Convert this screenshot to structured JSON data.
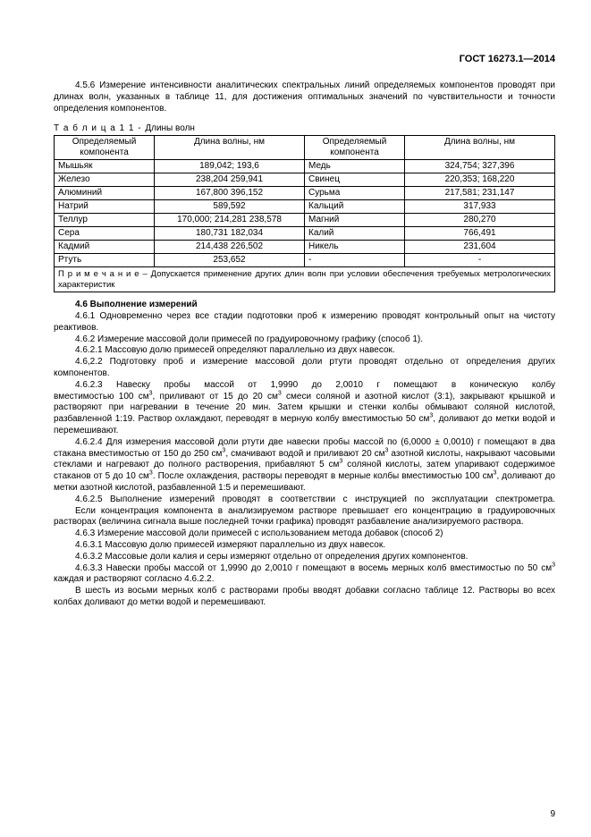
{
  "header": "ГОСТ 16273.1—2014",
  "para_intro": "4.5.6 Измерение интенсивности аналитических спектральных линий определяемых компонентов проводят при длинах волн, указанных в таблице 11, для достижения оптимальных значений по чувствительности и точности определения компонентов.",
  "table": {
    "caption_prefix": "Т а б л и ц а   1 1  - ",
    "caption_title": "Длины волн",
    "headers": [
      "Определяемый компонента",
      "Длина волны, нм",
      "Определяемый компонента",
      "Длина волны, нм"
    ],
    "rows": [
      [
        "Мышьяк",
        "189,042; 193,6",
        "Медь",
        "324,754; 327,396"
      ],
      [
        "Железо",
        "238,204 259,941",
        "Свинец",
        "220,353;  168,220"
      ],
      [
        "Алюминий",
        "167,800 396,152",
        "Сурьма",
        "217,581;  231,147"
      ],
      [
        "Натрий",
        "589,592",
        "Кальций",
        "317,933"
      ],
      [
        "Теллур",
        "170,000; 214,281 238,578",
        "Магний",
        "280,270"
      ],
      [
        "Сера",
        "180,731 182,034",
        "Калий",
        "766,491"
      ],
      [
        "Кадмий",
        "214,438 226,502",
        "Никель",
        "231,604"
      ],
      [
        "Ртуть",
        "253,652",
        "-",
        "-"
      ]
    ],
    "note": "П р и м е ч а н и е – Допускается применение других длин волн при условии обеспечения требуемых метрологических характеристик"
  },
  "section46": "4.6 Выполнение измерений",
  "p461": "4.6.1 Одновременно через все стадии подготовки проб к измерению проводят контрольный опыт на чистоту реактивов.",
  "p462": "4.6.2 Измерение массовой доли примесей по градуировочному графику (способ 1).",
  "p4621": "4.6.2.1 Массовую долю примесей определяют параллельно из двух навесок.",
  "p4622": "4.6,2.2 Подготовку проб и измерение массовой доли ртути проводят отдельно от определения других компонентов.",
  "p4623_l1": "4.6.2.3  Навеску  пробы  массой  от  1,9990  до  2,0010  г  помещают  в  коническую  колбу",
  "p4623_rest_a": "вместимостью 100 см",
  "p4623_rest_b": ", приливают от 15 до 20 см",
  "p4623_rest_c": " смеси соляной и азотной кислот (3:1), закрывают крышкой и растворяют при нагревании в течение 20 мин. Затем крышки и стенки колбы обмывают соляной кислотой, разбавленной 1:19. Раствор охлаждают, переводят в мерную колбу вместимостью 50 см",
  "p4623_rest_d": ", доливают до метки водой и перемешивают.",
  "p4624_a": "4.6.2.4 Для измерения массовой доли ртути две навески пробы массой по (6,0000 ± 0,0010) г помещают в два стакана вместимостью от 150 до 250 см",
  "p4624_b": ", смачивают водой и приливают 20 см",
  "p4624_c": " азотной кислоты, накрывают часовыми стеклами и нагревают до полного растворения, прибавляют 5 см",
  "p4624_d": " соляной кислоты, затем упаривают содержимое стаканов от 5 до 10 см",
  "p4624_e": ". После охлаждения, растворы переводят в мерные колбы вместимостью 100 см",
  "p4624_f": ", доливают до метки азотной кислотой, разбавленной 1:5 и перемешивают.",
  "p4625": "4.6.2.5 Выполнение измерений проводят в соответствии с инструкцией по эксплуатации спектрометра.",
  "p_conc": "Если концентрация компонента в анализируемом растворе превышает его концентрацию в градуировочных растворах (величина сигнала выше последней точки графика) проводят разбавление анализируемого раствора.",
  "p463": "4.6.3 Измерение массовой доли примесей с использованием метода добавок (способ 2)",
  "p4631": "4.6.3.1 Массовую долю примесей измеряют параллельно из двух навесок.",
  "p4632": "4.6.3.2 Массовые доли калия и серы измеряют отдельно от определения других компонентов.",
  "p4633_a": "4.6.3.3 Навески пробы массой от 1,9990 до 2,0010 г помещают в восемь мерных колб вместимостью по 50 см",
  "p4633_b": " каждая и растворяют согласно 4.6.2.2.",
  "p_six": "В шесть из восьми мерных колб с растворами пробы вводят добавки согласно таблице 12. Растворы во всех колбах доливают до метки водой и перемешивают.",
  "page_number": "9"
}
